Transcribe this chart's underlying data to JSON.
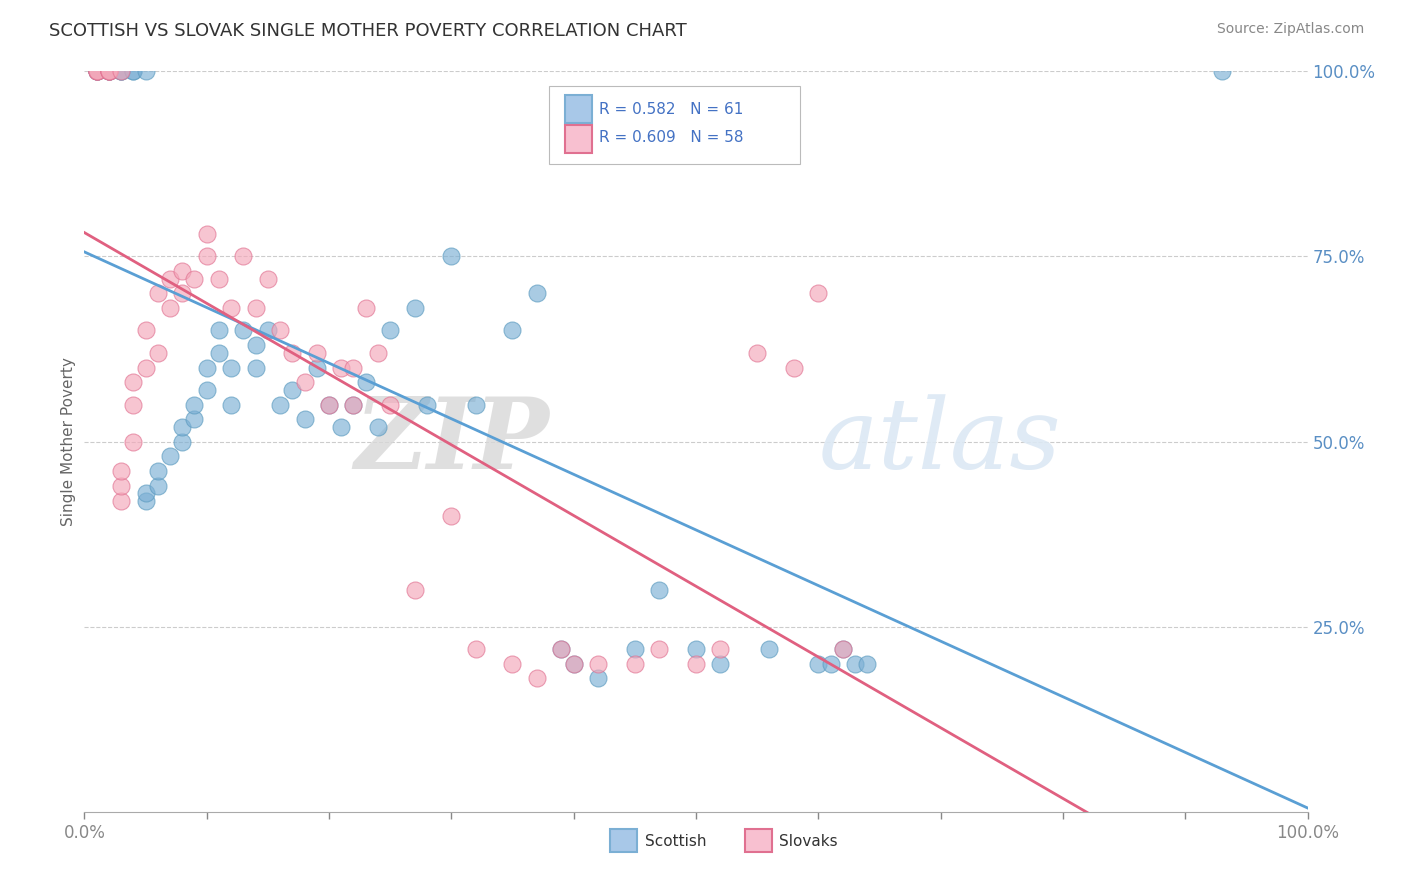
{
  "title": "SCOTTISH VS SLOVAK SINGLE MOTHER POVERTY CORRELATION CHART",
  "source": "Source: ZipAtlas.com",
  "ylabel": "Single Mother Poverty",
  "scottish_color": "#7bafd4",
  "scottish_edge": "#5a9abf",
  "slovak_color": "#f4a7b9",
  "slovak_edge": "#e07090",
  "scottish_line_color": "#5a9fd4",
  "slovak_line_color": "#e06080",
  "background_color": "#ffffff",
  "grid_color": "#cccccc",
  "right_axis_color": "#5a8fc4",
  "tick_color": "#5a8fc4",
  "watermark_color": "#dce8f4",
  "scottish_R": 0.582,
  "scottish_N": 61,
  "slovak_R": 0.609,
  "slovak_N": 58,
  "scottish_x": [
    0.01,
    0.01,
    0.01,
    0.02,
    0.02,
    0.02,
    0.03,
    0.03,
    0.03,
    0.04,
    0.04,
    0.05,
    0.05,
    0.05,
    0.06,
    0.06,
    0.07,
    0.08,
    0.08,
    0.09,
    0.09,
    0.1,
    0.1,
    0.11,
    0.11,
    0.12,
    0.12,
    0.13,
    0.14,
    0.14,
    0.15,
    0.16,
    0.17,
    0.18,
    0.19,
    0.2,
    0.21,
    0.22,
    0.23,
    0.24,
    0.25,
    0.27,
    0.28,
    0.3,
    0.32,
    0.35,
    0.37,
    0.39,
    0.4,
    0.42,
    0.45,
    0.47,
    0.5,
    0.52,
    0.56,
    0.6,
    0.61,
    0.62,
    0.63,
    0.64,
    0.93
  ],
  "scottish_y": [
    1.0,
    1.0,
    1.0,
    1.0,
    1.0,
    1.0,
    1.0,
    1.0,
    1.0,
    1.0,
    1.0,
    1.0,
    0.42,
    0.43,
    0.44,
    0.46,
    0.48,
    0.5,
    0.52,
    0.53,
    0.55,
    0.57,
    0.6,
    0.62,
    0.65,
    0.6,
    0.55,
    0.65,
    0.6,
    0.63,
    0.65,
    0.55,
    0.57,
    0.53,
    0.6,
    0.55,
    0.52,
    0.55,
    0.58,
    0.52,
    0.65,
    0.68,
    0.55,
    0.75,
    0.55,
    0.65,
    0.7,
    0.22,
    0.2,
    0.18,
    0.22,
    0.3,
    0.22,
    0.2,
    0.22,
    0.2,
    0.2,
    0.22,
    0.2,
    0.2,
    1.0
  ],
  "slovak_x": [
    0.01,
    0.01,
    0.01,
    0.01,
    0.02,
    0.02,
    0.02,
    0.02,
    0.03,
    0.03,
    0.03,
    0.03,
    0.04,
    0.04,
    0.04,
    0.05,
    0.05,
    0.06,
    0.06,
    0.07,
    0.07,
    0.08,
    0.08,
    0.09,
    0.1,
    0.1,
    0.11,
    0.12,
    0.13,
    0.14,
    0.15,
    0.16,
    0.17,
    0.18,
    0.19,
    0.2,
    0.21,
    0.22,
    0.22,
    0.23,
    0.24,
    0.25,
    0.27,
    0.3,
    0.32,
    0.35,
    0.37,
    0.39,
    0.4,
    0.42,
    0.45,
    0.47,
    0.5,
    0.52,
    0.55,
    0.58,
    0.6,
    0.62
  ],
  "slovak_y": [
    1.0,
    1.0,
    1.0,
    1.0,
    1.0,
    1.0,
    1.0,
    1.0,
    1.0,
    0.42,
    0.44,
    0.46,
    0.5,
    0.55,
    0.58,
    0.6,
    0.65,
    0.62,
    0.7,
    0.68,
    0.72,
    0.7,
    0.73,
    0.72,
    0.75,
    0.78,
    0.72,
    0.68,
    0.75,
    0.68,
    0.72,
    0.65,
    0.62,
    0.58,
    0.62,
    0.55,
    0.6,
    0.55,
    0.6,
    0.68,
    0.62,
    0.55,
    0.3,
    0.4,
    0.22,
    0.2,
    0.18,
    0.22,
    0.2,
    0.2,
    0.2,
    0.22,
    0.2,
    0.22,
    0.62,
    0.6,
    0.7,
    0.22
  ],
  "xtick_positions": [
    0.0,
    0.1,
    0.2,
    0.3,
    0.4,
    0.5,
    0.6,
    0.7,
    0.8,
    0.9,
    1.0
  ],
  "ytick_positions": [
    0.25,
    0.5,
    0.75,
    1.0
  ]
}
